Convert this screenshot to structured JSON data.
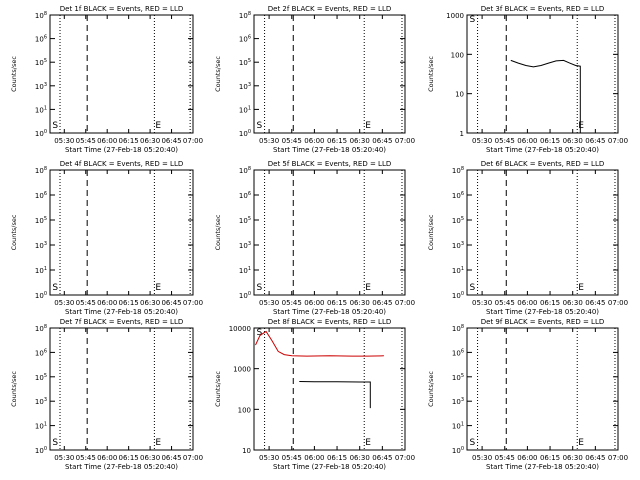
{
  "chart_data": [
    {
      "type": "line",
      "title": "Det 1f BLACK = Events, RED = LLD",
      "xlabel": "Start Time (27-Feb-18 05:20:40)",
      "ylabel": "Counts/sec",
      "y_scale": "log",
      "ylim": [
        1,
        100000000
      ],
      "xlim": [
        "05:20",
        "07:00"
      ],
      "x_ticks": [
        "05:30",
        "05:45",
        "06:00",
        "06:15",
        "06:30",
        "06:45",
        "07:00"
      ],
      "y_tick_labels": [
        "10^0",
        "10^1",
        "10^3",
        "10^5",
        "10^6",
        "10^8"
      ],
      "markers": [
        {
          "label": "S",
          "time": "05:21"
        },
        {
          "label": "E",
          "time": "06:33"
        }
      ],
      "dotted_lines": [
        "05:27",
        "06:33",
        "06:58"
      ],
      "dashed_lines": [
        "05:46"
      ],
      "series": []
    },
    {
      "type": "line",
      "title": "Det 2f BLACK = Events, RED = LLD",
      "xlabel": "Start Time (27-Feb-18 05:20:40)",
      "ylabel": "Counts/sec",
      "y_scale": "log",
      "ylim": [
        1,
        100000000
      ],
      "xlim": [
        "05:20",
        "07:00"
      ],
      "x_ticks": [
        "05:30",
        "05:45",
        "06:00",
        "06:15",
        "06:30",
        "06:45",
        "07:00"
      ],
      "y_tick_labels": [
        "10^0",
        "10^1",
        "10^3",
        "10^5",
        "10^6",
        "10^8"
      ],
      "markers": [
        {
          "label": "S",
          "time": "05:21"
        },
        {
          "label": "E",
          "time": "06:33"
        }
      ],
      "dotted_lines": [
        "05:27",
        "06:33",
        "06:58"
      ],
      "dashed_lines": [
        "05:46"
      ],
      "series": []
    },
    {
      "type": "line",
      "title": "Det 3f BLACK = Events, RED = LLD",
      "xlabel": "Start Time (27-Feb-18 05:20:40)",
      "ylabel": "Counts/sec",
      "y_scale": "log",
      "ylim": [
        1,
        1000
      ],
      "xlim": [
        "05:20",
        "07:00"
      ],
      "x_ticks": [
        "05:30",
        "05:45",
        "06:00",
        "06:15",
        "06:30",
        "06:45",
        "07:00"
      ],
      "y_tick_labels": [
        "1",
        "10",
        "100",
        "1000"
      ],
      "markers": [
        {
          "label": "S",
          "time": "05:21"
        },
        {
          "label": "E",
          "time": "06:33"
        }
      ],
      "dotted_lines": [
        "05:27",
        "06:33",
        "06:58"
      ],
      "dashed_lines": [
        "05:46"
      ],
      "series": [
        {
          "name": "Events",
          "color": "#000000",
          "points": [
            [
              "05:49",
              70
            ],
            [
              "05:54",
              60
            ],
            [
              "05:59",
              52
            ],
            [
              "06:04",
              48
            ],
            [
              "06:09",
              52
            ],
            [
              "06:14",
              60
            ],
            [
              "06:19",
              68
            ],
            [
              "06:24",
              70
            ],
            [
              "06:28",
              60
            ],
            [
              "06:32",
              52
            ],
            [
              "06:35",
              50
            ],
            [
              "06:35",
              1
            ]
          ]
        }
      ]
    },
    {
      "type": "line",
      "title": "Det 4f BLACK = Events, RED = LLD",
      "xlabel": "Start Time (27-Feb-18 05:20:40)",
      "ylabel": "Counts/sec",
      "y_scale": "log",
      "ylim": [
        1,
        100000000
      ],
      "xlim": [
        "05:20",
        "07:00"
      ],
      "x_ticks": [
        "05:30",
        "05:45",
        "06:00",
        "06:15",
        "06:30",
        "06:45",
        "07:00"
      ],
      "y_tick_labels": [
        "10^0",
        "10^1",
        "10^3",
        "10^5",
        "10^6",
        "10^8"
      ],
      "markers": [
        {
          "label": "S",
          "time": "05:21"
        },
        {
          "label": "E",
          "time": "06:33"
        }
      ],
      "dotted_lines": [
        "05:27",
        "06:33",
        "06:58"
      ],
      "dashed_lines": [
        "05:46"
      ],
      "series": []
    },
    {
      "type": "line",
      "title": "Det 5f BLACK = Events, RED = LLD",
      "xlabel": "Start Time (27-Feb-18 05:20:40)",
      "ylabel": "Counts/sec",
      "y_scale": "log",
      "ylim": [
        1,
        100000000
      ],
      "xlim": [
        "05:20",
        "07:00"
      ],
      "x_ticks": [
        "05:30",
        "05:45",
        "06:00",
        "06:15",
        "06:30",
        "06:45",
        "07:00"
      ],
      "y_tick_labels": [
        "10^0",
        "10^1",
        "10^3",
        "10^5",
        "10^6",
        "10^8"
      ],
      "markers": [
        {
          "label": "S",
          "time": "05:21"
        },
        {
          "label": "E",
          "time": "06:33"
        }
      ],
      "dotted_lines": [
        "05:27",
        "06:33",
        "06:58"
      ],
      "dashed_lines": [
        "05:46"
      ],
      "series": []
    },
    {
      "type": "line",
      "title": "Det 6f BLACK = Events, RED = LLD",
      "xlabel": "Start Time (27-Feb-18 05:20:40)",
      "ylabel": "Counts/sec",
      "y_scale": "log",
      "ylim": [
        1,
        100000000
      ],
      "xlim": [
        "05:20",
        "07:00"
      ],
      "x_ticks": [
        "05:30",
        "05:45",
        "06:00",
        "06:15",
        "06:30",
        "06:45",
        "07:00"
      ],
      "y_tick_labels": [
        "10^0",
        "10^1",
        "10^3",
        "10^5",
        "10^6",
        "10^8"
      ],
      "markers": [
        {
          "label": "S",
          "time": "05:21"
        },
        {
          "label": "E",
          "time": "06:33"
        }
      ],
      "dotted_lines": [
        "05:27",
        "06:33",
        "06:58"
      ],
      "dashed_lines": [
        "05:46"
      ],
      "series": []
    },
    {
      "type": "line",
      "title": "Det 7f BLACK = Events, RED = LLD",
      "xlabel": "Start Time (27-Feb-18 05:20:40)",
      "ylabel": "Counts/sec",
      "y_scale": "log",
      "ylim": [
        1,
        100000000
      ],
      "xlim": [
        "05:20",
        "07:00"
      ],
      "x_ticks": [
        "05:30",
        "05:45",
        "06:00",
        "06:15",
        "06:30",
        "06:45",
        "07:00"
      ],
      "y_tick_labels": [
        "10^0",
        "10^1",
        "10^3",
        "10^5",
        "10^6",
        "10^8"
      ],
      "markers": [
        {
          "label": "S",
          "time": "05:21"
        },
        {
          "label": "E",
          "time": "06:33"
        }
      ],
      "dotted_lines": [
        "05:27",
        "06:33",
        "06:58"
      ],
      "dashed_lines": [
        "05:46"
      ],
      "series": []
    },
    {
      "type": "line",
      "title": "Det 8f BLACK = Events, RED = LLD",
      "xlabel": "Start Time (27-Feb-18 05:20:40)",
      "ylabel": "Counts/sec",
      "y_scale": "log",
      "ylim": [
        1,
        20000
      ],
      "xlim": [
        "05:20",
        "07:00"
      ],
      "x_ticks": [
        "05:30",
        "05:45",
        "06:00",
        "06:15",
        "06:30",
        "06:45",
        "07:00"
      ],
      "y_tick_labels": [
        "10",
        "100",
        "1000",
        "10000"
      ],
      "markers": [
        {
          "label": "S",
          "time": "05:21"
        },
        {
          "label": "E",
          "time": "06:33"
        }
      ],
      "dotted_lines": [
        "05:27",
        "06:33",
        "06:58"
      ],
      "dashed_lines": [
        "05:46"
      ],
      "series": [
        {
          "name": "LLD",
          "color": "#cc0000",
          "points": [
            [
              "05:21",
              5000
            ],
            [
              "05:24",
              11000
            ],
            [
              "05:28",
              15000
            ],
            [
              "05:32",
              7000
            ],
            [
              "05:36",
              3000
            ],
            [
              "05:40",
              2300
            ],
            [
              "05:45",
              2100
            ],
            [
              "05:55",
              2050
            ],
            [
              "06:10",
              2100
            ],
            [
              "06:25",
              2050
            ],
            [
              "06:35",
              2050
            ],
            [
              "06:46",
              2100
            ]
          ]
        },
        {
          "name": "Events",
          "color": "#000000",
          "points": [
            [
              "05:50",
              260
            ],
            [
              "06:00",
              255
            ],
            [
              "06:15",
              255
            ],
            [
              "06:30",
              250
            ],
            [
              "06:37",
              250
            ],
            [
              "06:37",
              30
            ]
          ]
        }
      ]
    },
    {
      "type": "line",
      "title": "Det 9f BLACK = Events, RED = LLD",
      "xlabel": "Start Time (27-Feb-18 05:20:40)",
      "ylabel": "Counts/sec",
      "y_scale": "log",
      "ylim": [
        1,
        100000000
      ],
      "xlim": [
        "05:20",
        "07:00"
      ],
      "x_ticks": [
        "05:30",
        "05:45",
        "06:00",
        "06:15",
        "06:30",
        "06:45",
        "07:00"
      ],
      "y_tick_labels": [
        "10^0",
        "10^1",
        "10^3",
        "10^5",
        "10^6",
        "10^8"
      ],
      "markers": [
        {
          "label": "S",
          "time": "05:21"
        },
        {
          "label": "E",
          "time": "06:33"
        }
      ],
      "dotted_lines": [
        "05:27",
        "06:33",
        "06:58"
      ],
      "dashed_lines": [
        "05:46"
      ],
      "series": []
    }
  ]
}
